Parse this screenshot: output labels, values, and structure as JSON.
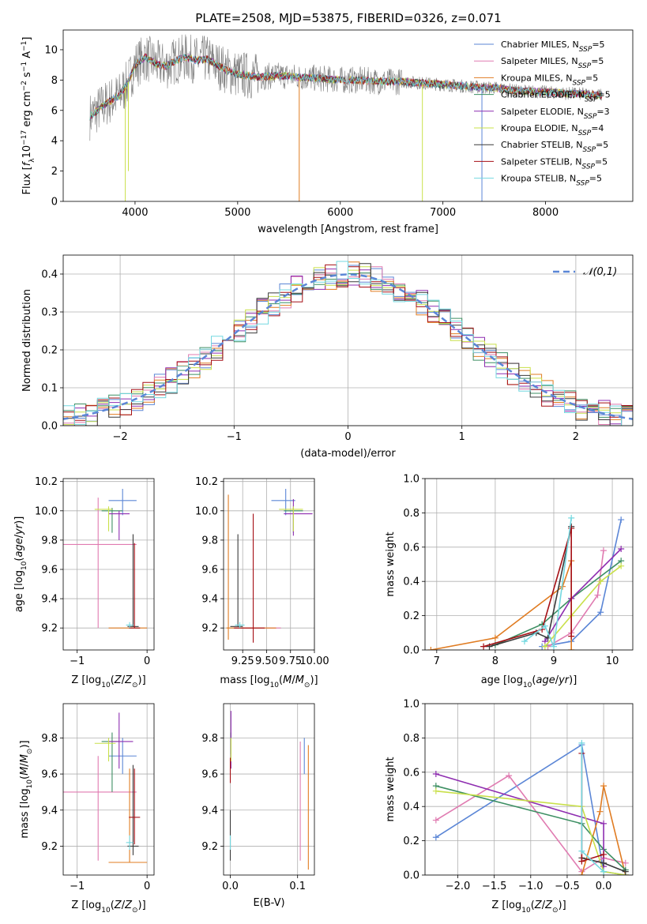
{
  "figure": {
    "title": "PLATE=2508, MJD=53875, FIBERID=0326, z=0.071"
  },
  "series_styles": [
    {
      "name": "Chabrier MILES",
      "nssp": "5",
      "color": "#5b86d6"
    },
    {
      "name": "Salpeter MILES",
      "nssp": "5",
      "color": "#e07bb1"
    },
    {
      "name": "Kroupa MILES",
      "nssp": "5",
      "color": "#e07c22"
    },
    {
      "name": "Chabrier ELODIE",
      "nssp": "5",
      "color": "#3d8f63"
    },
    {
      "name": "Salpeter ELODIE",
      "nssp": "3",
      "color": "#8e2db0"
    },
    {
      "name": "Kroupa ELODIE",
      "nssp": "4",
      "color": "#c9e04a"
    },
    {
      "name": "Chabrier STELIB",
      "nssp": "5",
      "color": "#3a3a3a"
    },
    {
      "name": "Salpeter STELIB",
      "nssp": "5",
      "color": "#a50f15"
    },
    {
      "name": "Kroupa STELIB",
      "nssp": "5",
      "color": "#73d8e0"
    }
  ],
  "chart_data": [
    {
      "id": "spectrum",
      "type": "line",
      "title": "PLATE=2508, MJD=53875, FIBERID=0326, z=0.071",
      "xlabel": "wavelength [Angstrom, rest frame]",
      "ylabel": "Flux [f_λ 10^-17 erg cm^-2 s^-1 A^-1]",
      "xlim": [
        3300,
        8850
      ],
      "ylim": [
        0,
        11.3
      ],
      "xticks": [
        4000,
        5000,
        6000,
        7000,
        8000
      ],
      "yticks": [
        0,
        2,
        4,
        6,
        8,
        10
      ],
      "data_color": "#808080",
      "legend_position": "right",
      "continuum": {
        "x": [
          3560,
          3650,
          3750,
          3850,
          3930,
          4000,
          4100,
          4200,
          4300,
          4400,
          4500,
          4600,
          4700,
          4800,
          4900,
          5000,
          5200,
          5400,
          5600,
          5800,
          6000,
          6200,
          6400,
          6600,
          6800,
          7000,
          7200,
          7400,
          7500,
          7700,
          8000,
          8300,
          8550
        ],
        "y": [
          5.6,
          6.1,
          6.6,
          7.0,
          7.8,
          9.0,
          9.5,
          9.1,
          8.9,
          9.3,
          9.5,
          9.3,
          9.4,
          9.0,
          8.6,
          8.4,
          8.2,
          8.3,
          8.2,
          8.1,
          8.0,
          8.0,
          7.9,
          7.9,
          7.8,
          7.7,
          7.6,
          7.5,
          7.5,
          7.3,
          7.2,
          7.1,
          7.0
        ]
      },
      "dips": [
        {
          "x": 3905,
          "y": 0.0,
          "color": "#c9e04a"
        },
        {
          "x": 3935,
          "y": 2.0,
          "color": "#c9e04a"
        },
        {
          "x": 5600,
          "y": 0.0,
          "color": "#e07c22"
        },
        {
          "x": 6800,
          "y": 0.0,
          "color": "#c9e04a"
        },
        {
          "x": 7380,
          "y": 0.0,
          "color": "#5b86d6"
        }
      ]
    },
    {
      "id": "residuals",
      "type": "histogram",
      "xlabel": "(data-model)/error",
      "ylabel": "Normed distribution",
      "xlim": [
        -2.5,
        2.5
      ],
      "ylim": [
        0,
        0.45
      ],
      "xticks": [
        -2,
        -1,
        0,
        1,
        2
      ],
      "yticks": [
        0.0,
        0.1,
        0.2,
        0.3,
        0.4
      ],
      "reference_curve": {
        "label": "𝒩(0,1)",
        "color": "#5b86d6",
        "mean": 0,
        "sigma": 1
      },
      "bin_width": 0.1
    },
    {
      "id": "z_age",
      "type": "errorbar",
      "xlabel": "Z [log10(Z/Z⊙)]",
      "ylabel": "age  [log10(age/yr)]",
      "xlim": [
        -1.2,
        0.1
      ],
      "ylim": [
        9.05,
        10.22
      ],
      "xticks": [
        -1,
        0
      ],
      "yticks": [
        9.2,
        9.4,
        9.6,
        9.8,
        10.0,
        10.2
      ],
      "points": [
        {
          "series": "Chabrier MILES",
          "x": -0.35,
          "y": 10.07,
          "xerr": [
            0.2,
            0.2
          ],
          "yerr": [
            0.1,
            0.08
          ]
        },
        {
          "series": "Salpeter MILES",
          "x": -0.7,
          "y": 9.77,
          "xerr": [
            0.5,
            0.55
          ],
          "yerr": [
            0.57,
            0.32
          ]
        },
        {
          "series": "Kroupa MILES",
          "x": -0.25,
          "y": 9.2,
          "xerr": [
            0.3,
            0.25
          ],
          "yerr": [
            0.0,
            0.0
          ]
        },
        {
          "series": "Chabrier ELODIE",
          "x": -0.5,
          "y": 10.0,
          "xerr": [
            0.15,
            0.15
          ],
          "yerr": [
            0.15,
            0.02
          ]
        },
        {
          "series": "Salpeter ELODIE",
          "x": -0.4,
          "y": 9.98,
          "xerr": [
            0.15,
            0.15
          ],
          "yerr": [
            0.18,
            0.02
          ]
        },
        {
          "series": "Kroupa ELODIE",
          "x": -0.55,
          "y": 10.01,
          "xerr": [
            0.2,
            0.05
          ],
          "yerr": [
            0.15,
            0.02
          ]
        },
        {
          "series": "Chabrier STELIB",
          "x": -0.2,
          "y": 9.21,
          "xerr": [
            0.08,
            0.08
          ],
          "yerr": [
            0.0,
            0.63
          ]
        },
        {
          "series": "Salpeter STELIB",
          "x": -0.18,
          "y": 9.2,
          "xerr": [
            0.08,
            0.08
          ],
          "yerr": [
            0.0,
            0.58
          ]
        },
        {
          "series": "Kroupa STELIB",
          "x": -0.25,
          "y": 9.22,
          "xerr": [
            0.05,
            0.05
          ],
          "yerr": [
            0.02,
            0.02
          ]
        }
      ]
    },
    {
      "id": "mass_age",
      "type": "errorbar",
      "xlabel": "mass [log10(M/M⊙)]",
      "ylabel": "",
      "xlim": [
        9.05,
        10.0
      ],
      "ylim": [
        9.05,
        10.22
      ],
      "xticks": [
        9.25,
        9.5,
        9.75,
        10.0
      ],
      "xticklabels": [
        "9.25",
        "9.50",
        "9.75",
        "10.00"
      ],
      "yticks": [
        9.2,
        9.4,
        9.6,
        9.8,
        10.0,
        10.2
      ],
      "points": [
        {
          "series": "Chabrier MILES",
          "x": 9.7,
          "y": 10.07,
          "xerr": [
            0.15,
            0.1
          ],
          "yerr": [
            0.1,
            0.08
          ]
        },
        {
          "series": "Salpeter MILES",
          "x": 9.5,
          "y": 9.2,
          "xerr": [
            0.35,
            0.15
          ],
          "yerr": [
            0.0,
            0.0
          ]
        },
        {
          "series": "Kroupa MILES",
          "x": 9.1,
          "y": 9.2,
          "xerr": [
            0.02,
            0.5
          ],
          "yerr": [
            0.08,
            0.91
          ]
        },
        {
          "series": "Chabrier ELODIE",
          "x": 9.78,
          "y": 10.0,
          "xerr": [
            0.1,
            0.1
          ],
          "yerr": [
            0.15,
            0.02
          ]
        },
        {
          "series": "Salpeter ELODIE",
          "x": 9.78,
          "y": 9.98,
          "xerr": [
            0.1,
            0.2
          ],
          "yerr": [
            0.15,
            0.1
          ]
        },
        {
          "series": "Kroupa ELODIE",
          "x": 9.78,
          "y": 10.01,
          "xerr": [
            0.15,
            0.1
          ],
          "yerr": [
            0.15,
            0.02
          ]
        },
        {
          "series": "Chabrier STELIB",
          "x": 9.2,
          "y": 9.21,
          "xerr": [
            0.08,
            0.05
          ],
          "yerr": [
            0.0,
            0.63
          ]
        },
        {
          "series": "Salpeter STELIB",
          "x": 9.36,
          "y": 9.2,
          "xerr": [
            0.2,
            0.12
          ],
          "yerr": [
            0.1,
            0.78
          ]
        },
        {
          "series": "Kroupa STELIB",
          "x": 9.22,
          "y": 9.22,
          "xerr": [
            0.05,
            0.05
          ],
          "yerr": [
            0.02,
            0.02
          ]
        }
      ]
    },
    {
      "id": "age_weight",
      "type": "line",
      "xlabel": "age  [log10(age/yr)]",
      "ylabel": "mass weight",
      "xlim": [
        6.8,
        10.35
      ],
      "ylim": [
        0,
        1.0
      ],
      "xticks": [
        7,
        8,
        9,
        10
      ],
      "yticks": [
        0.0,
        0.2,
        0.4,
        0.6,
        0.8,
        1.0
      ],
      "series": [
        {
          "name": "Chabrier MILES",
          "x": [
            8.8,
            9.3,
            9.8,
            10.15
          ],
          "y": [
            0.02,
            0.05,
            0.22,
            0.76
          ]
        },
        {
          "name": "Salpeter MILES",
          "x": [
            8.9,
            9.3,
            9.75,
            9.85
          ],
          "y": [
            0.02,
            0.1,
            0.32,
            0.58
          ]
        },
        {
          "name": "Kroupa MILES",
          "x": [
            6.9,
            8.0,
            9.15,
            9.3,
            9.3
          ],
          "y": [
            0.0,
            0.07,
            0.37,
            0.52,
            0.0
          ]
        },
        {
          "name": "Chabrier ELODIE",
          "x": [
            8.0,
            8.8,
            9.3,
            10.15
          ],
          "y": [
            0.03,
            0.15,
            0.3,
            0.52
          ]
        },
        {
          "name": "Salpeter ELODIE",
          "x": [
            8.85,
            9.3,
            10.15
          ],
          "y": [
            0.05,
            0.3,
            0.59
          ]
        },
        {
          "name": "Kroupa ELODIE",
          "x": [
            8.85,
            9.3,
            9.8,
            10.15
          ],
          "y": [
            0.02,
            0.2,
            0.4,
            0.49
          ]
        },
        {
          "name": "Chabrier STELIB",
          "x": [
            7.9,
            8.7,
            8.9,
            9.3
          ],
          "y": [
            0.02,
            0.1,
            0.07,
            0.72
          ]
        },
        {
          "name": "Salpeter STELIB",
          "x": [
            7.8,
            8.8,
            9.3,
            9.3
          ],
          "y": [
            0.02,
            0.12,
            0.71,
            0.08
          ]
        },
        {
          "name": "Kroupa STELIB",
          "x": [
            8.5,
            8.85,
            9.0,
            9.3
          ],
          "y": [
            0.05,
            0.14,
            0.02,
            0.77
          ]
        }
      ]
    },
    {
      "id": "z_mass",
      "type": "errorbar",
      "xlabel": "Z [log10(Z/Z⊙)]",
      "ylabel": "mass [log10(M/M⊙)]",
      "xlim": [
        -1.2,
        0.1
      ],
      "ylim": [
        9.04,
        9.99
      ],
      "xticks": [
        -1,
        0
      ],
      "yticks": [
        9.2,
        9.4,
        9.6,
        9.8
      ],
      "points": [
        {
          "series": "Chabrier MILES",
          "x": -0.35,
          "y": 9.7,
          "xerr": [
            0.2,
            0.2
          ],
          "yerr": [
            0.1,
            0.1
          ]
        },
        {
          "series": "Salpeter MILES",
          "x": -0.7,
          "y": 9.5,
          "xerr": [
            0.5,
            0.55
          ],
          "yerr": [
            0.38,
            0.2
          ]
        },
        {
          "series": "Kroupa MILES",
          "x": -0.25,
          "y": 9.11,
          "xerr": [
            0.3,
            0.25
          ],
          "yerr": [
            0.0,
            0.52
          ]
        },
        {
          "series": "Chabrier ELODIE",
          "x": -0.5,
          "y": 9.78,
          "xerr": [
            0.15,
            0.1
          ],
          "yerr": [
            0.28,
            0.05
          ]
        },
        {
          "series": "Salpeter ELODIE",
          "x": -0.4,
          "y": 9.78,
          "xerr": [
            0.15,
            0.2
          ],
          "yerr": [
            0.15,
            0.16
          ]
        },
        {
          "series": "Kroupa ELODIE",
          "x": -0.55,
          "y": 9.77,
          "xerr": [
            0.2,
            0.1
          ],
          "yerr": [
            0.1,
            0.03
          ]
        },
        {
          "series": "Chabrier STELIB",
          "x": -0.2,
          "y": 9.2,
          "xerr": [
            0.08,
            0.08
          ],
          "yerr": [
            0.05,
            0.45
          ]
        },
        {
          "series": "Salpeter STELIB",
          "x": -0.18,
          "y": 9.36,
          "xerr": [
            0.08,
            0.08
          ],
          "yerr": [
            0.15,
            0.27
          ]
        },
        {
          "series": "Kroupa STELIB",
          "x": -0.25,
          "y": 9.22,
          "xerr": [
            0.05,
            0.05
          ],
          "yerr": [
            0.04,
            0.04
          ]
        }
      ]
    },
    {
      "id": "ebv_mass",
      "type": "errorbar",
      "xlabel": "E(B-V)",
      "ylabel": "",
      "xlim": [
        -0.01,
        0.125
      ],
      "ylim": [
        9.04,
        9.99
      ],
      "xticks": [
        0.0,
        0.1
      ],
      "xticklabels": [
        "0.0",
        "0.1"
      ],
      "yticks": [
        9.2,
        9.4,
        9.6,
        9.8
      ],
      "points": [
        {
          "series": "Chabrier MILES",
          "x": 0.11,
          "y": 9.7,
          "xerr": [
            0,
            0
          ],
          "yerr": [
            0.1,
            0.1
          ]
        },
        {
          "series": "Salpeter MILES",
          "x": 0.104,
          "y": 9.5,
          "xerr": [
            0,
            0
          ],
          "yerr": [
            0.38,
            0.28
          ]
        },
        {
          "series": "Kroupa MILES",
          "x": 0.116,
          "y": 9.37,
          "xerr": [
            0,
            0
          ],
          "yerr": [
            0.3,
            0.39
          ]
        },
        {
          "series": "Chabrier ELODIE",
          "x": 0.001,
          "y": 9.78,
          "xerr": [
            0,
            0
          ],
          "yerr": [
            0.07,
            0.05
          ]
        },
        {
          "series": "Salpeter ELODIE",
          "x": 0.001,
          "y": 9.78,
          "xerr": [
            0,
            0
          ],
          "yerr": [
            0.15,
            0.17
          ]
        },
        {
          "series": "Kroupa ELODIE",
          "x": 0.001,
          "y": 9.77,
          "xerr": [
            0,
            0
          ],
          "yerr": [
            0.1,
            0.03
          ]
        },
        {
          "series": "Chabrier STELIB",
          "x": 0.0,
          "y": 9.2,
          "xerr": [
            0,
            0
          ],
          "yerr": [
            0.08,
            0.2
          ]
        },
        {
          "series": "Salpeter STELIB",
          "x": 0.0,
          "y": 9.6,
          "xerr": [
            0,
            0
          ],
          "yerr": [
            0.05,
            0.09
          ]
        },
        {
          "series": "Kroupa STELIB",
          "x": 0.0,
          "y": 9.22,
          "xerr": [
            0,
            0
          ],
          "yerr": [
            0.04,
            0.04
          ]
        }
      ]
    },
    {
      "id": "z_weight",
      "type": "line",
      "xlabel": "Z [log10(Z/Z⊙)]",
      "ylabel": "mass weight",
      "xlim": [
        -2.45,
        0.4
      ],
      "ylim": [
        0,
        1.0
      ],
      "xticks": [
        -2.0,
        -1.5,
        -1.0,
        -0.5,
        0.0
      ],
      "xticklabels": [
        "−2.0",
        "−1.5",
        "−1.0",
        "−0.5",
        "0.0"
      ],
      "yticks": [
        0.0,
        0.2,
        0.4,
        0.6,
        0.8,
        1.0
      ],
      "series": [
        {
          "name": "Chabrier MILES",
          "x": [
            -2.3,
            -0.3,
            0.0,
            0.3
          ],
          "y": [
            0.22,
            0.76,
            0.02,
            0.0
          ]
        },
        {
          "name": "Salpeter MILES",
          "x": [
            -2.3,
            -1.3,
            -0.3,
            0.0,
            0.3
          ],
          "y": [
            0.32,
            0.58,
            0.02,
            0.1,
            0.07
          ]
        },
        {
          "name": "Kroupa MILES",
          "x": [
            -0.3,
            -0.05,
            0.0,
            0.3
          ],
          "y": [
            0.0,
            0.37,
            0.52,
            0.0
          ]
        },
        {
          "name": "Chabrier ELODIE",
          "x": [
            -2.3,
            -0.3,
            0.0,
            0.3
          ],
          "y": [
            0.52,
            0.3,
            0.15,
            0.03
          ]
        },
        {
          "name": "Salpeter ELODIE",
          "x": [
            -2.3,
            0.0,
            0.0
          ],
          "y": [
            0.59,
            0.3,
            0.05
          ]
        },
        {
          "name": "Kroupa ELODIE",
          "x": [
            -2.3,
            -0.3,
            0.0,
            0.3
          ],
          "y": [
            0.49,
            0.4,
            0.02,
            0.0
          ]
        },
        {
          "name": "Chabrier STELIB",
          "x": [
            -0.3,
            0.0,
            0.3
          ],
          "y": [
            0.1,
            0.07,
            0.02
          ]
        },
        {
          "name": "Salpeter STELIB",
          "x": [
            -0.3,
            -0.3,
            0.0
          ],
          "y": [
            0.71,
            0.08,
            0.12
          ]
        },
        {
          "name": "Kroupa STELIB",
          "x": [
            -0.3,
            -0.3,
            0.0
          ],
          "y": [
            0.77,
            0.14,
            0.02
          ]
        }
      ]
    }
  ]
}
